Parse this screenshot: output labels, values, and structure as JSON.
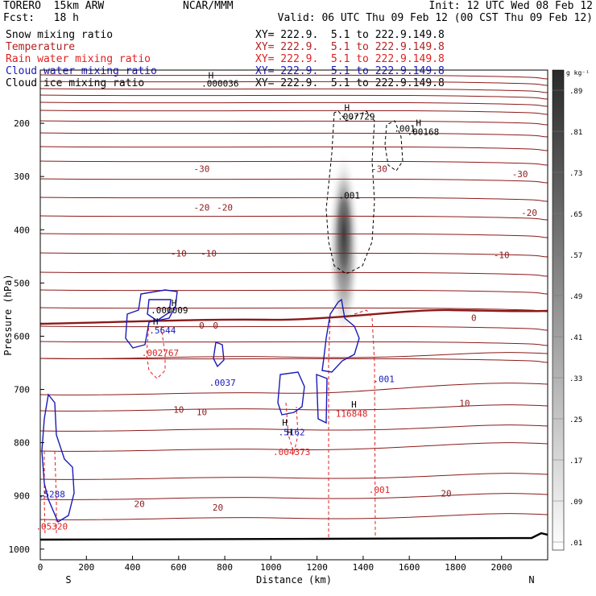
{
  "header": {
    "model": "TORERO  15km ARW",
    "center": "NCAR/MMM",
    "init": "Init: 12 UTC Wed 08 Feb 12",
    "fcst": "Fcst:   18 h",
    "valid": "Valid: 06 UTC Thu 09 Feb 12 (00 CST Thu 09 Feb 12)"
  },
  "legend": [
    {
      "name": "Snow mixing ratio",
      "color": "#000000",
      "xy": "XY= 222.9.  5.1 to 222.9.149.8"
    },
    {
      "name": "Temperature",
      "color": "#b22222",
      "xy": "XY= 222.9.  5.1 to 222.9.149.8"
    },
    {
      "name": "Rain water mixing ratio",
      "color": "#e02020",
      "xy": "XY= 222.9.  5.1 to 222.9.149.8"
    },
    {
      "name": "Cloud water mixing ratio",
      "color": "#1a1ab8",
      "xy": "XY= 222.9.  5.1 to 222.9.149.8"
    },
    {
      "name": "Cloud ice mixing ratio",
      "color": "#000000",
      "xy": "XY= 222.9.  5.1 to 222.9.149.8"
    }
  ],
  "chart_data": {
    "type": "contour-cross-section",
    "xlabel": "Distance (km)",
    "ylabel": "Pressure (hPa)",
    "xlim": [
      0,
      2200
    ],
    "ylim": [
      1020,
      100
    ],
    "x_ticks": [
      0,
      200,
      400,
      600,
      800,
      1000,
      1200,
      1400,
      1600,
      1800,
      2000
    ],
    "y_ticks": [
      200,
      300,
      400,
      500,
      600,
      700,
      800,
      900,
      1000
    ],
    "x_end_labels": {
      "left": "S",
      "right": "N"
    },
    "colorbar": {
      "unit": "g kg⁻¹",
      "labels": [
        ".01",
        ".09",
        ".17",
        ".25",
        ".33",
        ".41",
        ".49",
        ".57",
        ".65",
        ".73",
        ".81",
        ".89"
      ]
    },
    "temperature_labels": [
      {
        "text": "-30",
        "x": 700,
        "p": 285
      },
      {
        "text": "-30",
        "x": 1470,
        "p": 285
      },
      {
        "text": "-30",
        "x": 2080,
        "p": 295
      },
      {
        "text": "-20",
        "x": 700,
        "p": 358
      },
      {
        "text": "-20",
        "x": 800,
        "p": 358
      },
      {
        "text": "-20",
        "x": 2120,
        "p": 368
      },
      {
        "text": "-10",
        "x": 600,
        "p": 444
      },
      {
        "text": "-10",
        "x": 730,
        "p": 444
      },
      {
        "text": "-10",
        "x": 2000,
        "p": 447
      },
      {
        "text": "0",
        "x": 700,
        "p": 580
      },
      {
        "text": "0",
        "x": 760,
        "p": 580
      },
      {
        "text": "0",
        "x": 1880,
        "p": 565
      },
      {
        "text": "10",
        "x": 600,
        "p": 738
      },
      {
        "text": "10",
        "x": 700,
        "p": 742
      },
      {
        "text": "10",
        "x": 1840,
        "p": 726
      },
      {
        "text": "20",
        "x": 430,
        "p": 915
      },
      {
        "text": "20",
        "x": 770,
        "p": 922
      },
      {
        "text": "20",
        "x": 1760,
        "p": 895
      }
    ],
    "max_labels": [
      {
        "text": ".000036",
        "x": 780,
        "p": 125,
        "color": "#000000"
      },
      {
        "text": ".007729",
        "x": 1370,
        "p": 187,
        "color": "#000000"
      },
      {
        "text": ".00168",
        "x": 1660,
        "p": 216,
        "color": "#000000"
      },
      {
        "text": ".001",
        "x": 1580,
        "p": 210,
        "color": "#000000"
      },
      {
        "text": ".001",
        "x": 1340,
        "p": 335,
        "color": "#000000"
      },
      {
        "text": ".000009",
        "x": 560,
        "p": 551,
        "color": "#000000"
      },
      {
        "text": ".5644",
        "x": 530,
        "p": 589,
        "color": "#1a1ab8"
      },
      {
        "text": ".002767",
        "x": 520,
        "p": 631,
        "color": "#e02020"
      },
      {
        "text": ".0037",
        "x": 790,
        "p": 687,
        "color": "#1a1ab8"
      },
      {
        "text": ".001",
        "x": 1490,
        "p": 680,
        "color": "#1a1ab8"
      },
      {
        "text": "116848",
        "x": 1350,
        "p": 745,
        "color": "#e02020"
      },
      {
        "text": ".5162",
        "x": 1090,
        "p": 780,
        "color": "#1a1ab8"
      },
      {
        "text": ".004373",
        "x": 1090,
        "p": 817,
        "color": "#e02020"
      },
      {
        "text": ".001",
        "x": 1470,
        "p": 888,
        "color": "#e02020"
      },
      {
        "text": ".5288",
        "x": 50,
        "p": 897,
        "color": "#1a1ab8"
      },
      {
        "text": ".05320",
        "x": 50,
        "p": 957,
        "color": "#e02020"
      }
    ],
    "max_markers": [
      {
        "text": "H",
        "x": 740,
        "p": 110
      },
      {
        "text": "H",
        "x": 1330,
        "p": 170
      },
      {
        "text": "H",
        "x": 1640,
        "p": 199
      },
      {
        "text": "H",
        "x": 580,
        "p": 537
      },
      {
        "text": "H",
        "x": 500,
        "p": 572
      },
      {
        "text": "H",
        "x": 1360,
        "p": 728
      },
      {
        "text": "H",
        "x": 1060,
        "p": 762
      },
      {
        "text": "H",
        "x": 1080,
        "p": 780
      }
    ]
  }
}
